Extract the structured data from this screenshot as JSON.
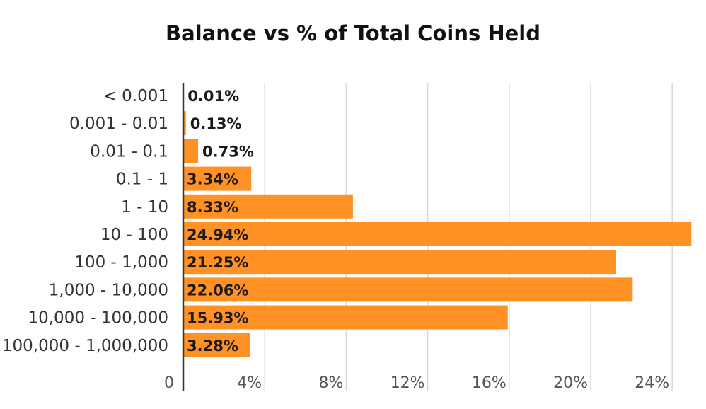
{
  "chart_data": {
    "type": "bar",
    "orientation": "horizontal",
    "title": "Balance vs % of Total Coins Held",
    "xlabel": "",
    "ylabel": "",
    "categories": [
      "< 0.001",
      "0.001 - 0.01",
      "0.01 - 0.1",
      "0.1 - 1",
      "1 - 10",
      "10 - 100",
      "100 - 1,000",
      "1,000 - 10,000",
      "10,000 - 100,000",
      "100,000 - 1,000,000"
    ],
    "values": [
      0.01,
      0.13,
      0.73,
      3.34,
      8.33,
      24.94,
      21.25,
      22.06,
      15.93,
      3.28
    ],
    "data_labels": [
      "0.01%",
      "0.13%",
      "0.73%",
      "3.34%",
      "8.33%",
      "24.94%",
      "21.25%",
      "22.06%",
      "15.93%",
      "3.28%"
    ],
    "xlim": [
      0,
      25
    ],
    "x_ticks": [
      0,
      4,
      8,
      12,
      16,
      20,
      24
    ],
    "x_tick_labels": [
      "0",
      "4%",
      "8%",
      "12%",
      "16%",
      "20%",
      "24%"
    ],
    "grid": true,
    "legend": "none",
    "colors": {
      "bar": "#FF9125",
      "grid": "#d8d8d8",
      "axis": "#333333"
    }
  }
}
